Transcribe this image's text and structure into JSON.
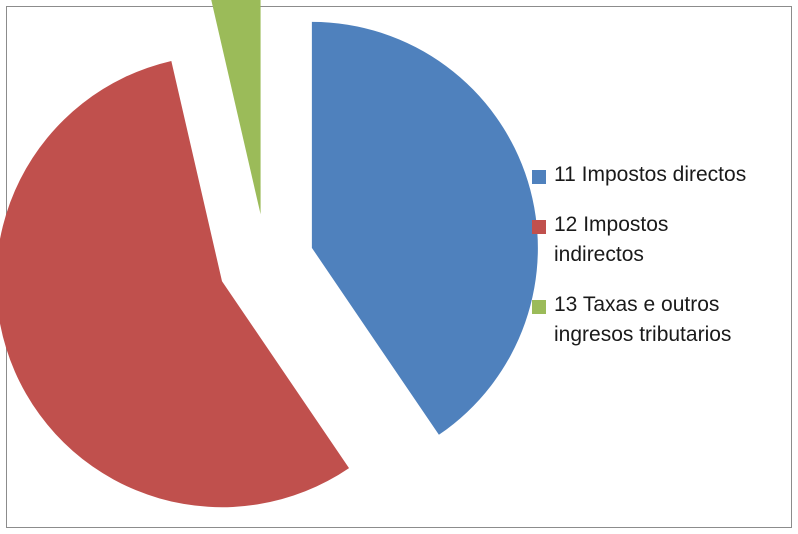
{
  "chart_data": {
    "type": "pie",
    "title": "",
    "exploded": true,
    "legend_position": "right",
    "slices": [
      {
        "label": "11 Impostos directos",
        "value": 40.5,
        "color": "#4f81bd"
      },
      {
        "label": "12 Impostos indirectos",
        "value": 55.9,
        "color": "#c0504d"
      },
      {
        "label": "13 Taxas e outros ingresos tributarios",
        "value": 3.6,
        "color": "#9bbb59"
      }
    ]
  },
  "legend": {
    "items": [
      {
        "line1": "11 Impostos directos",
        "line2": ""
      },
      {
        "line1": "12 Impostos",
        "line2": "indirectos"
      },
      {
        "line1": "13 Taxas e outros",
        "line2": "ingresos tributarios"
      }
    ]
  }
}
